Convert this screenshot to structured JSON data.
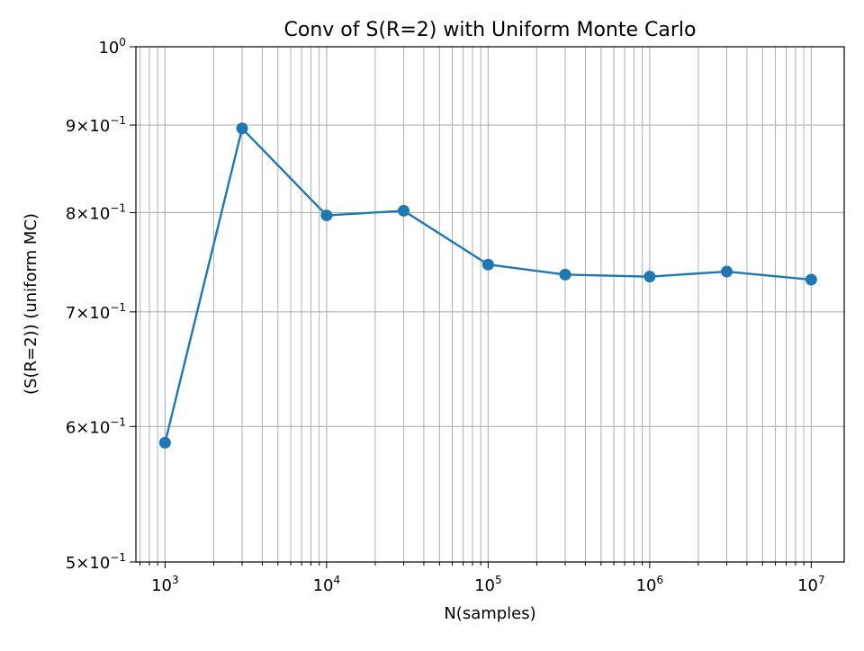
{
  "chart_data": {
    "type": "line",
    "title": "Conv of S(R=2) with Uniform Monte Carlo",
    "xlabel": "N(samples)",
    "ylabel": "(S(R=2)) (uniform MC)",
    "x_scale": "log",
    "y_scale": "log",
    "xlim": [
      660,
      16000000
    ],
    "ylim": [
      0.5,
      1.0
    ],
    "grid": "both-major-minor-x",
    "color": "#1f77b4",
    "marker": "circle",
    "x_ticks": [
      {
        "value": 1000,
        "base": "10",
        "exp": "3"
      },
      {
        "value": 10000,
        "base": "10",
        "exp": "4"
      },
      {
        "value": 100000,
        "base": "10",
        "exp": "5"
      },
      {
        "value": 1000000,
        "base": "10",
        "exp": "6"
      },
      {
        "value": 10000000,
        "base": "10",
        "exp": "7"
      }
    ],
    "y_ticks": [
      {
        "value": 1.0,
        "mant": "",
        "base": "10",
        "exp": "0"
      },
      {
        "value": 0.9,
        "mant": "9×",
        "base": "10",
        "exp": "−1"
      },
      {
        "value": 0.8,
        "mant": "8×",
        "base": "10",
        "exp": "−1"
      },
      {
        "value": 0.7,
        "mant": "7×",
        "base": "10",
        "exp": "−1"
      },
      {
        "value": 0.6,
        "mant": "6×",
        "base": "10",
        "exp": "−1"
      },
      {
        "value": 0.5,
        "mant": "5×",
        "base": "10",
        "exp": "−1"
      }
    ],
    "x": [
      1000,
      3000,
      10000,
      30000,
      100000,
      300000,
      1000000,
      3000000,
      10000000
    ],
    "y": [
      0.587,
      0.896,
      0.797,
      0.802,
      0.746,
      0.736,
      0.734,
      0.739,
      0.731
    ]
  }
}
